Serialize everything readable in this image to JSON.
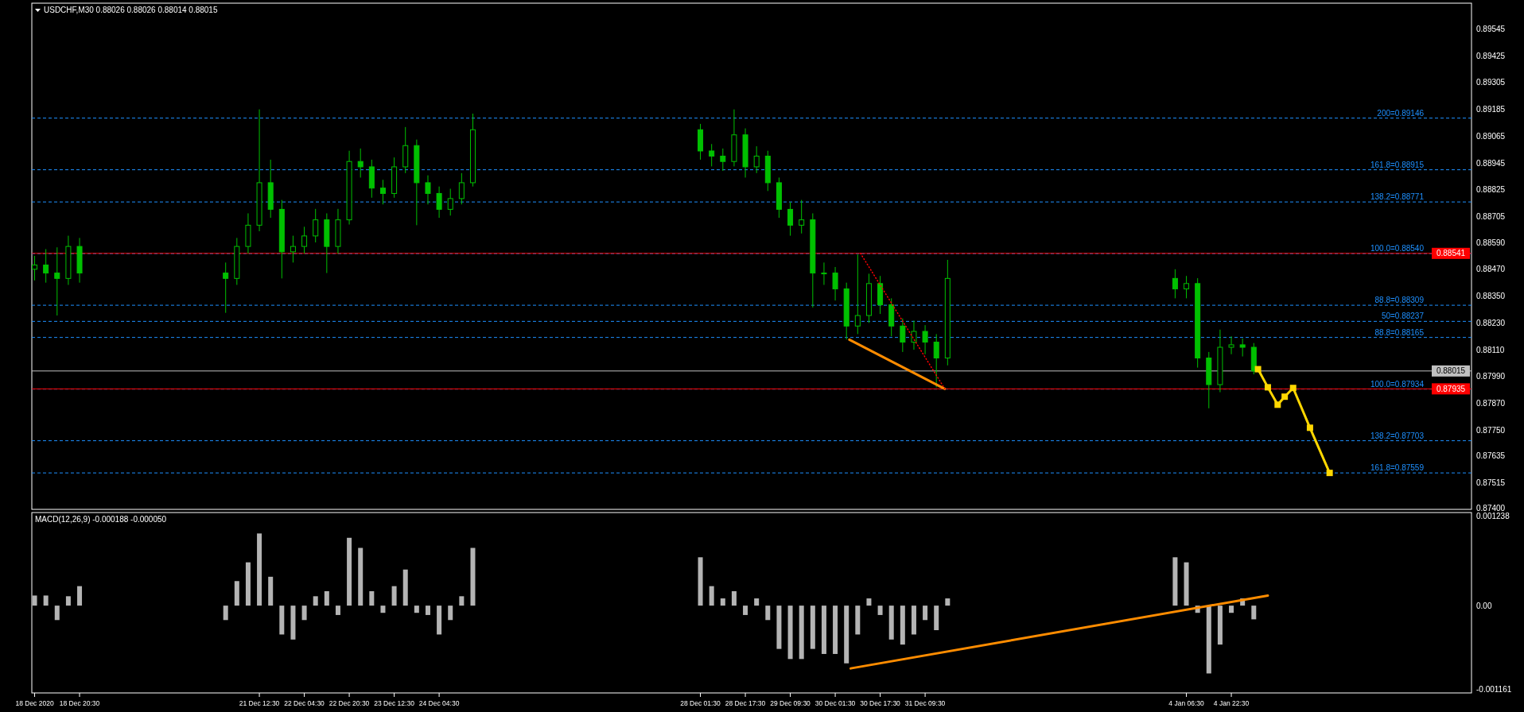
{
  "chart_data": [
    {
      "type": "candlestick",
      "title": "USDCHF,M30 0.88026 0.88026 0.88014 0.88015",
      "color": "#00c000",
      "tick_labels": "y",
      "x": [
        "2020-12-18T04:30",
        "2020-12-18T08:30",
        "2020-12-18T12:30",
        "2020-12-18T16:30",
        "2020-12-18T20:30",
        "2020-12-21T00:30",
        "2020-12-21T04:30",
        "2020-12-21T08:30",
        "2020-12-21T12:30",
        "2020-12-21T16:30",
        "2020-12-21T20:30",
        "2020-12-22T00:30",
        "2020-12-22T04:30",
        "2020-12-22T08:30",
        "2020-12-22T12:30",
        "2020-12-22T16:30",
        "2020-12-22T20:30",
        "2020-12-23T00:30",
        "2020-12-23T04:30",
        "2020-12-23T08:30",
        "2020-12-23T12:30",
        "2020-12-23T16:30",
        "2020-12-23T20:30",
        "2020-12-24T00:30",
        "2020-12-24T04:30",
        "2020-12-24T08:30",
        "2020-12-24T12:30",
        "2020-12-24T16:30",
        "2020-12-28T01:30",
        "2020-12-28T05:30",
        "2020-12-28T09:30",
        "2020-12-28T13:30",
        "2020-12-28T17:30",
        "2020-12-28T21:30",
        "2020-12-29T01:30",
        "2020-12-29T05:30",
        "2020-12-29T09:30",
        "2020-12-29T13:30",
        "2020-12-29T17:30",
        "2020-12-29T21:30",
        "2020-12-30T01:30",
        "2020-12-30T05:30",
        "2020-12-30T09:30",
        "2020-12-30T13:30",
        "2020-12-30T17:30",
        "2020-12-30T21:30",
        "2020-12-31T01:30",
        "2020-12-31T05:30",
        "2020-12-31T09:30",
        "2020-12-31T13:30",
        "2020-12-31T17:30",
        "2021-01-04T02:30",
        "2021-01-04T06:30",
        "2021-01-04T10:30",
        "2021-01-04T14:30",
        "2021-01-04T18:30",
        "2021-01-04T22:30",
        "2021-01-05T02:30",
        "2021-01-05T06:30"
      ],
      "ohlc": [
        [
          0.8847,
          0.8853,
          0.8842,
          0.88489
        ],
        [
          0.88489,
          0.8856,
          0.8841,
          0.88453
        ],
        [
          0.88453,
          0.88568,
          0.88263,
          0.88429
        ],
        [
          0.88429,
          0.8862,
          0.884,
          0.88572
        ],
        [
          0.88572,
          0.8861,
          0.8841,
          0.88453
        ],
        [
          0.88453,
          0.885,
          0.88275,
          0.88429
        ],
        [
          0.88429,
          0.8861,
          0.884,
          0.88572
        ],
        [
          0.88572,
          0.8872,
          0.8854,
          0.88667
        ],
        [
          0.88667,
          0.89185,
          0.8864,
          0.88857
        ],
        [
          0.88857,
          0.8896,
          0.887,
          0.88738
        ],
        [
          0.88738,
          0.8878,
          0.88429,
          0.88548
        ],
        [
          0.88548,
          0.8862,
          0.885,
          0.88572
        ],
        [
          0.88572,
          0.8866,
          0.8854,
          0.88619
        ],
        [
          0.88619,
          0.8874,
          0.8859,
          0.88691
        ],
        [
          0.88691,
          0.8872,
          0.88453,
          0.88572
        ],
        [
          0.88572,
          0.8874,
          0.8854,
          0.88691
        ],
        [
          0.88691,
          0.89,
          0.8867,
          0.88952
        ],
        [
          0.88952,
          0.8901,
          0.8888,
          0.88928
        ],
        [
          0.88928,
          0.8896,
          0.8879,
          0.88833
        ],
        [
          0.88833,
          0.8887,
          0.8876,
          0.88809
        ],
        [
          0.88809,
          0.8897,
          0.8879,
          0.88928
        ],
        [
          0.88928,
          0.89106,
          0.889,
          0.89023
        ],
        [
          0.89023,
          0.8905,
          0.88667,
          0.88857
        ],
        [
          0.88857,
          0.8889,
          0.8876,
          0.88809
        ],
        [
          0.88809,
          0.8884,
          0.887,
          0.88738
        ],
        [
          0.88738,
          0.8883,
          0.8871,
          0.88786
        ],
        [
          0.88786,
          0.889,
          0.8876,
          0.88857
        ],
        [
          0.88857,
          0.89166,
          0.8884,
          0.89094
        ],
        [
          0.89094,
          0.8912,
          0.8896,
          0.88999
        ],
        [
          0.88999,
          0.8903,
          0.8893,
          0.88976
        ],
        [
          0.88976,
          0.8901,
          0.8891,
          0.88952
        ],
        [
          0.88952,
          0.89185,
          0.8893,
          0.89071
        ],
        [
          0.89071,
          0.891,
          0.8888,
          0.88928
        ],
        [
          0.88928,
          0.8902,
          0.889,
          0.88976
        ],
        [
          0.88976,
          0.89,
          0.8882,
          0.88857
        ],
        [
          0.88857,
          0.8888,
          0.887,
          0.88738
        ],
        [
          0.88738,
          0.8877,
          0.8862,
          0.88667
        ],
        [
          0.88667,
          0.8878,
          0.8863,
          0.88691
        ],
        [
          0.88691,
          0.8872,
          0.88299,
          0.88453
        ],
        [
          0.88453,
          0.885,
          0.884,
          0.88453
        ],
        [
          0.88453,
          0.8848,
          0.8833,
          0.88382
        ],
        [
          0.88382,
          0.8841,
          0.88156,
          0.88216
        ],
        [
          0.88216,
          0.88536,
          0.8818,
          0.88263
        ],
        [
          0.88263,
          0.8845,
          0.8823,
          0.88406
        ],
        [
          0.88406,
          0.8844,
          0.8827,
          0.88311
        ],
        [
          0.88311,
          0.8834,
          0.8817,
          0.88216
        ],
        [
          0.88216,
          0.8825,
          0.881,
          0.88144
        ],
        [
          0.88144,
          0.8824,
          0.8811,
          0.88192
        ],
        [
          0.88192,
          0.8822,
          0.8809,
          0.88144
        ],
        [
          0.88144,
          0.8818,
          0.87942,
          0.88073
        ],
        [
          0.88073,
          0.88512,
          0.8804,
          0.88429
        ],
        [
          0.88429,
          0.8847,
          0.8834,
          0.88382
        ],
        [
          0.88382,
          0.8844,
          0.8834,
          0.88406
        ],
        [
          0.88406,
          0.8843,
          0.8803,
          0.88073
        ],
        [
          0.88073,
          0.881,
          0.87848,
          0.87954
        ],
        [
          0.87954,
          0.882,
          0.8792,
          0.88121
        ],
        [
          0.88121,
          0.8817,
          0.8809,
          0.88132
        ],
        [
          0.88132,
          0.8816,
          0.8808,
          0.88121
        ],
        [
          0.88121,
          0.8814,
          0.88,
          0.88015
        ]
      ],
      "series": [
        {
          "type": "line",
          "color": "#ff8c00",
          "line_style": "solid",
          "x": [
            "2020-12-30T06:30",
            "2020-12-31T16:30"
          ],
          "values": [
            0.88155,
            0.87935
          ]
        },
        {
          "type": "line",
          "color": "#ff0000",
          "line_style": "dotted",
          "x": [
            "2020-12-30T10:30",
            "2020-12-31T16:30"
          ],
          "values": [
            0.88541,
            0.87935
          ]
        },
        {
          "type": "line",
          "color": "#ffd700",
          "line_style": "solid",
          "marker": "square",
          "x": [
            "2021-01-05T08:00",
            "2021-01-05T11:30",
            "2021-01-05T15:00",
            "2021-01-05T17:30",
            "2021-01-05T20:30",
            "2021-01-06T02:30",
            "2021-01-06T09:30"
          ],
          "values": [
            0.88023,
            0.87942,
            0.87864,
            0.879,
            0.87939,
            0.87761,
            0.87559
          ]
        }
      ],
      "xlim": [
        "2020-12-18T03:30",
        "2021-01-08T12:00"
      ],
      "ylim": [
        0.87396,
        0.8966
      ],
      "yticks": [
        0.89545,
        0.89425,
        0.89305,
        0.89185,
        0.89065,
        0.88945,
        0.88825,
        0.88705,
        {
          "value": 0.8859,
          "label": "0.88590"
        },
        {
          "value": 0.8847,
          "label": "0.88470"
        },
        {
          "value": 0.8835,
          "label": "0.88350"
        },
        {
          "value": 0.8823,
          "label": "0.88230"
        },
        {
          "value": 0.8811,
          "label": "0.88110"
        },
        {
          "value": 0.8799,
          "label": "0.87990"
        },
        {
          "value": 0.8787,
          "label": "0.87870"
        },
        {
          "value": 0.8775,
          "label": "0.87750"
        },
        0.87635,
        0.87515,
        {
          "value": 0.874,
          "label": "0.87400"
        }
      ],
      "ref_lines": [
        {
          "axis": "y",
          "value": 0.89146,
          "label": "200=0.89146",
          "color": "#1e90ff",
          "line_style": "dashed"
        },
        {
          "axis": "y",
          "value": 0.88915,
          "label": "161.8=0.88915",
          "color": "#1e90ff",
          "line_style": "dashed"
        },
        {
          "axis": "y",
          "value": 0.88771,
          "label": "138.2=0.88771",
          "color": "#1e90ff",
          "line_style": "dashed"
        },
        {
          "axis": "y",
          "value": 0.8854,
          "label": "100.0=0.88540",
          "color": "#1e90ff",
          "line_style": "dashed"
        },
        {
          "axis": "y",
          "value": 0.88309,
          "label": "88.8=0.88309",
          "color": "#1e90ff",
          "line_style": "dashed"
        },
        {
          "axis": "y",
          "value": 0.88237,
          "label": "50=0.88237",
          "color": "#1e90ff",
          "line_style": "dashed"
        },
        {
          "axis": "y",
          "value": 0.88165,
          "label": "88.8=0.88165",
          "color": "#1e90ff",
          "line_style": "dashed"
        },
        {
          "axis": "y",
          "value": 0.87934,
          "label": "100.0=0.87934",
          "color": "#1e90ff",
          "line_style": "dashed"
        },
        {
          "axis": "y",
          "value": 0.87703,
          "label": "138.2=0.87703",
          "color": "#1e90ff",
          "line_style": "dashed"
        },
        {
          "axis": "y",
          "value": 0.87559,
          "label": "161.8=0.87559",
          "color": "#1e90ff",
          "line_style": "dashed"
        },
        {
          "axis": "y",
          "value": 0.88541,
          "label": "0.88541",
          "color": "#ff0000",
          "line_style": "solid"
        },
        {
          "axis": "y",
          "value": 0.88015,
          "label": "0.88015",
          "color": "#c0c0c0",
          "line_style": "solid"
        },
        {
          "axis": "y",
          "value": 0.87935,
          "label": "0.87935",
          "color": "#ff0000",
          "line_style": "solid"
        }
      ]
    },
    {
      "type": "bar",
      "title": "MACD(12,26,9) -0.000188 -0.000050",
      "color": "#b4b4b4",
      "x": [
        "2020-12-18T04:30",
        "2020-12-18T08:30",
        "2020-12-18T12:30",
        "2020-12-18T16:30",
        "2020-12-18T20:30",
        "2020-12-21T00:30",
        "2020-12-21T04:30",
        "2020-12-21T08:30",
        "2020-12-21T12:30",
        "2020-12-21T16:30",
        "2020-12-21T20:30",
        "2020-12-22T00:30",
        "2020-12-22T04:30",
        "2020-12-22T08:30",
        "2020-12-22T12:30",
        "2020-12-22T16:30",
        "2020-12-22T20:30",
        "2020-12-23T00:30",
        "2020-12-23T04:30",
        "2020-12-23T08:30",
        "2020-12-23T12:30",
        "2020-12-23T16:30",
        "2020-12-23T20:30",
        "2020-12-24T00:30",
        "2020-12-24T04:30",
        "2020-12-24T08:30",
        "2020-12-24T12:30",
        "2020-12-24T16:30",
        "2020-12-28T01:30",
        "2020-12-28T05:30",
        "2020-12-28T09:30",
        "2020-12-28T13:30",
        "2020-12-28T17:30",
        "2020-12-28T21:30",
        "2020-12-29T01:30",
        "2020-12-29T05:30",
        "2020-12-29T09:30",
        "2020-12-29T13:30",
        "2020-12-29T17:30",
        "2020-12-29T21:30",
        "2020-12-30T01:30",
        "2020-12-30T05:30",
        "2020-12-30T09:30",
        "2020-12-30T13:30",
        "2020-12-30T17:30",
        "2020-12-30T21:30",
        "2020-12-31T01:30",
        "2020-12-31T05:30",
        "2020-12-31T09:30",
        "2020-12-31T13:30",
        "2020-12-31T17:30",
        "2021-01-04T02:30",
        "2021-01-04T06:30",
        "2021-01-04T10:30",
        "2021-01-04T14:30",
        "2021-01-04T18:30",
        "2021-01-04T22:30",
        "2021-01-05T02:30",
        "2021-01-05T06:30"
      ],
      "values": [
        0.00014,
        0.00014,
        -0.0002,
        0.00013,
        0.00027,
        -0.0002,
        0.00034,
        0.0006,
        0.001,
        0.0004,
        -0.0004,
        -0.00047,
        -0.0002,
        0.00013,
        0.0002,
        -0.00013,
        0.00094,
        0.0008,
        0.0002,
        -0.0001,
        0.00027,
        0.0005,
        -0.0001,
        -0.00013,
        -0.0004,
        -0.0002,
        0.00013,
        0.0008,
        0.00067,
        0.00027,
        0.0001,
        0.0002,
        -0.00013,
        0.0001,
        -0.0002,
        -0.0006,
        -0.00074,
        -0.00074,
        -0.0006,
        -0.00067,
        -0.00067,
        -0.0008,
        -0.0004,
        0.0001,
        -0.00013,
        -0.00047,
        -0.00054,
        -0.0004,
        -0.0002,
        -0.00034,
        0.0001,
        0.00067,
        0.0006,
        -0.0001,
        -0.00094,
        -0.00054,
        -0.0001,
        0.0001,
        -0.00019
      ],
      "series": [
        {
          "type": "line",
          "color": "#ff8c00",
          "line_style": "solid",
          "x": [
            "2020-12-30T07:00",
            "2021-01-05T11:30"
          ],
          "values": [
            -0.00087,
            0.00014
          ]
        }
      ],
      "xlim": [
        "2020-12-18T03:30",
        "2021-01-08T12:00"
      ],
      "xticks": [
        {
          "value": "2020-12-18T04:30",
          "label": "18 Dec 2020"
        },
        {
          "value": "2020-12-18T20:30",
          "label": "18 Dec 20:30"
        },
        {
          "value": "2020-12-21T12:30",
          "label": "21 Dec 12:30"
        },
        {
          "value": "2020-12-22T04:30",
          "label": "22 Dec 04:30"
        },
        {
          "value": "2020-12-22T20:30",
          "label": "22 Dec 20:30"
        },
        {
          "value": "2020-12-23T12:30",
          "label": "23 Dec 12:30"
        },
        {
          "value": "2020-12-24T04:30",
          "label": "24 Dec 04:30"
        },
        {
          "value": "2020-12-28T01:30",
          "label": "28 Dec 01:30"
        },
        {
          "value": "2020-12-28T17:30",
          "label": "28 Dec 17:30"
        },
        {
          "value": "2020-12-29T09:30",
          "label": "29 Dec 09:30"
        },
        {
          "value": "2020-12-30T01:30",
          "label": "30 Dec 01:30"
        },
        {
          "value": "2020-12-30T17:30",
          "label": "30 Dec 17:30"
        },
        {
          "value": "2020-12-31T09:30",
          "label": "31 Dec 09:30"
        },
        {
          "value": "2021-01-04T06:30",
          "label": "4 Jan 06:30"
        },
        {
          "value": "2021-01-04T22:30",
          "label": "4 Jan 22:30"
        }
      ],
      "ylim": [
        -0.00121,
        0.00129
      ],
      "yticks": [
        0.001238,
        {
          "value": 0,
          "label": "0.00"
        },
        -0.001161
      ]
    }
  ]
}
